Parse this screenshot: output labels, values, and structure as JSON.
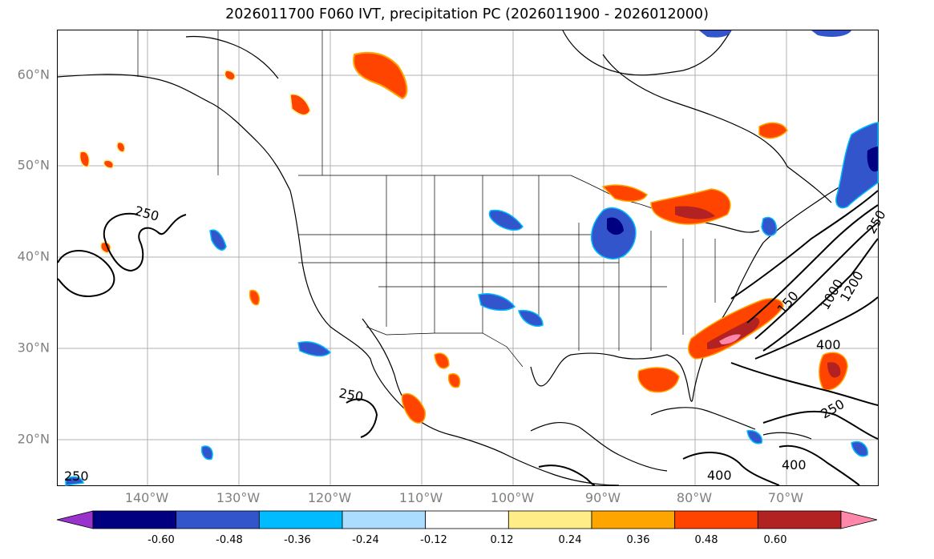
{
  "title": "2026011700 F060 IVT, precipitation PC (2026011900 - 2026012000)",
  "lat_labels": [
    "60°N",
    "50°N",
    "40°N",
    "30°N",
    "20°N"
  ],
  "lon_labels": [
    "140°W",
    "130°W",
    "120°W",
    "110°W",
    "100°W",
    "90°W",
    "80°W",
    "70°W"
  ],
  "contour_labels": [
    "250",
    "250",
    "250",
    "250",
    "400",
    "400",
    "400",
    "250",
    "1000",
    "1200",
    "150"
  ],
  "colorbar": {
    "ticks": [
      "-0.60",
      "-0.48",
      "-0.36",
      "-0.24",
      "-0.12",
      "0.12",
      "0.24",
      "0.36",
      "0.48",
      "0.60"
    ],
    "colors": [
      "#9933cc",
      "#000080",
      "#3355cc",
      "#00bbff",
      "#aaddff",
      "#ffffff",
      "#ffee88",
      "#ffa500",
      "#ff4400",
      "#b22222",
      "#ff88aa"
    ]
  },
  "colors": {
    "grid": "#b0b0b0",
    "coast": "#000000",
    "label_gray": "#808080"
  }
}
